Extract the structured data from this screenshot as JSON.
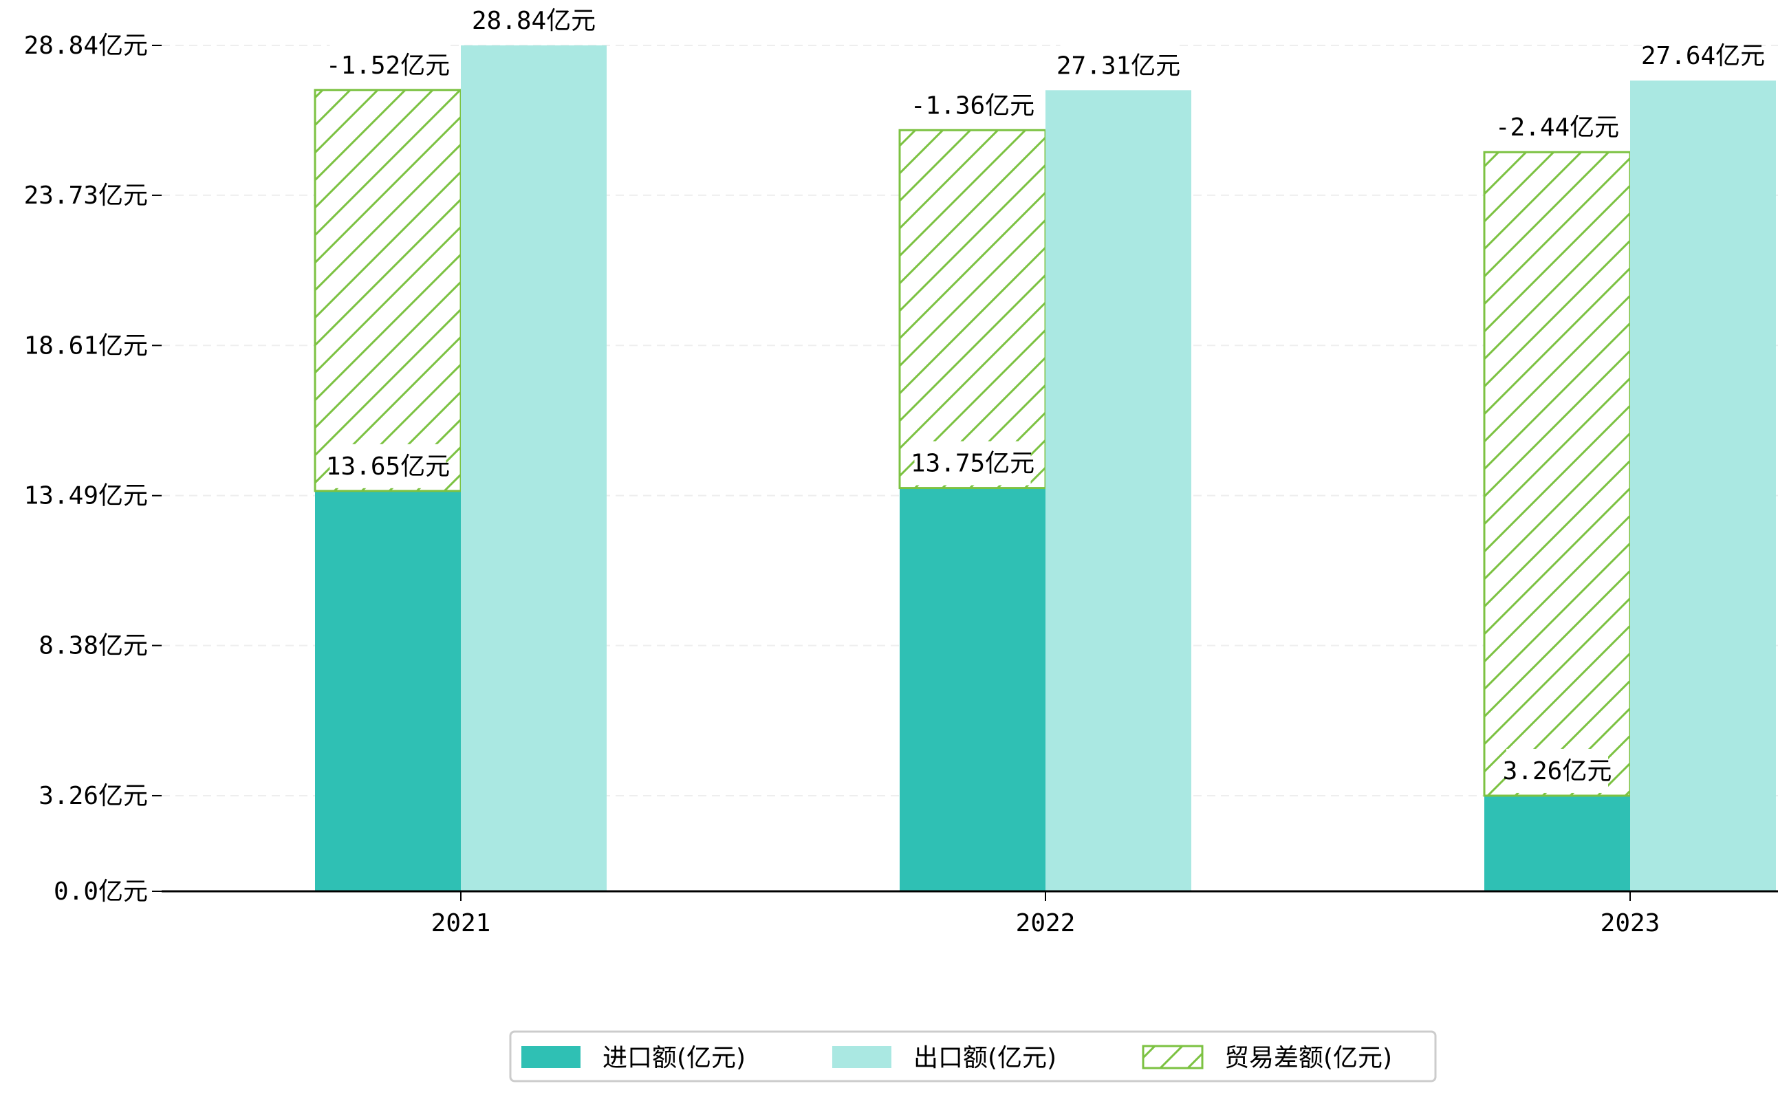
{
  "chart_data": {
    "type": "bar",
    "title": "",
    "xlabel": "",
    "ylabel": "",
    "categories": [
      "2021",
      "2022",
      "2023"
    ],
    "series": [
      {
        "name": "进口额(亿元)",
        "values": [
          13.65,
          13.75,
          3.26
        ],
        "color": "#2fc0b4",
        "style": "solid"
      },
      {
        "name": "出口额(亿元)",
        "values": [
          28.84,
          27.31,
          27.64
        ],
        "color": "#aae8e2",
        "style": "solid"
      },
      {
        "name": "贸易差额(亿元)",
        "values": [
          -1.52,
          -1.36,
          -2.44
        ],
        "color": "#7cc242",
        "style": "hatched"
      }
    ],
    "data_labels": {
      "import": [
        "13.65亿元",
        "13.75亿元",
        "3.26亿元"
      ],
      "export": [
        "28.84亿元",
        "27.31亿元",
        "27.64亿元"
      ],
      "balance": [
        "-1.52亿元",
        "-1.36亿元",
        "-2.44亿元"
      ]
    },
    "yticks": [
      0.0,
      3.26,
      8.38,
      13.49,
      18.61,
      23.73,
      28.84
    ],
    "ytick_labels": [
      "0.0亿元",
      "3.26亿元",
      "8.38亿元",
      "13.49亿元",
      "18.61亿元",
      "23.73亿元",
      "28.84亿元"
    ],
    "ylim": [
      0,
      29.3
    ],
    "grid": "horizontal-dashed",
    "legend_position": "bottom-center"
  }
}
